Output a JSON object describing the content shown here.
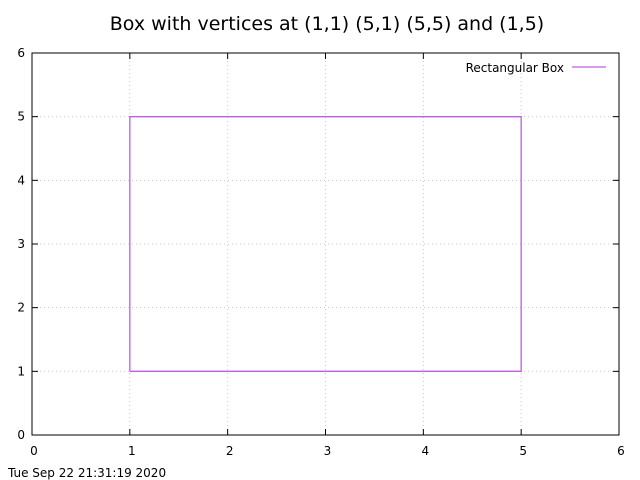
{
  "chart_data": {
    "type": "line",
    "title": "Box with vertices at (1,1) (5,1) (5,5) and (1,5)",
    "xlabel": "",
    "ylabel": "",
    "xlim": [
      0,
      6
    ],
    "ylim": [
      0,
      6
    ],
    "xticks": [
      0,
      1,
      2,
      3,
      4,
      5,
      6
    ],
    "yticks": [
      0,
      1,
      2,
      3,
      4,
      5,
      6
    ],
    "grid": true,
    "legend_position": "top-right",
    "series": [
      {
        "name": "Rectangular Box",
        "color": "#bf5fe0",
        "x": [
          1,
          5,
          5,
          1,
          1
        ],
        "y": [
          1,
          1,
          5,
          5,
          1
        ]
      }
    ]
  },
  "footer": {
    "timestamp": "Tue Sep 22 21:31:19 2020"
  }
}
